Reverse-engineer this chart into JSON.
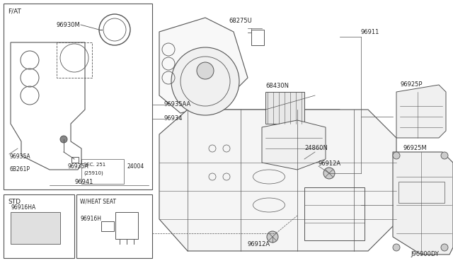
{
  "bg_color": "#ffffff",
  "diagram_id": "J96900DY",
  "line_color": "#555555",
  "text_color": "#222222",
  "labels": {
    "fat": "F/AT",
    "std": "STD",
    "wheat": "W/HEAT SEAT",
    "p96930M": "96930M",
    "p96935AA": "96935AA",
    "p96934": "96934",
    "p96935A_1": "96935A",
    "p96935A_2": "96935A",
    "p6B261P": "6B261P",
    "p24004": "24004",
    "p96941": "96941",
    "p68275U": "68275U",
    "p96911": "96911",
    "p68430N": "68430N",
    "p24860N": "24860N",
    "p96912A_1": "96912A",
    "p96912A_2": "96912A",
    "p96925P": "96925P",
    "p96925M": "96925M",
    "p96916HA": "96916HA",
    "p96916H": "96916H",
    "sec251": "SEC. 251",
    "sec25910": "(25910)"
  }
}
